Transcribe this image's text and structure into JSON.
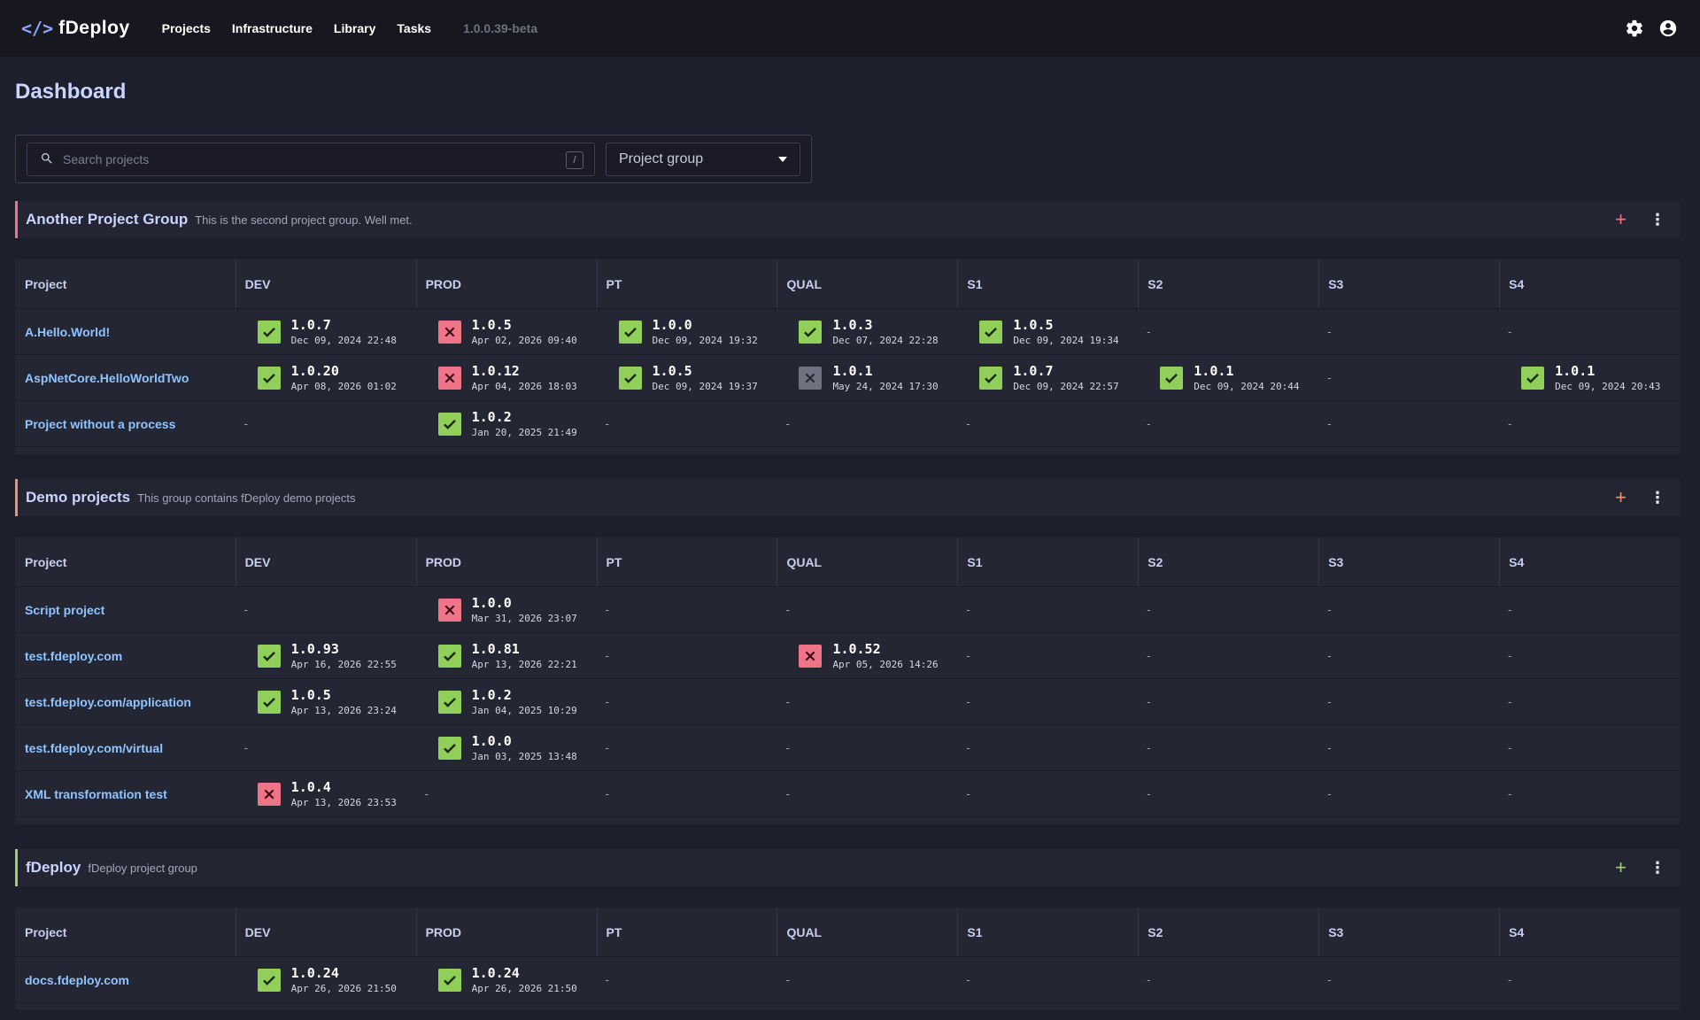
{
  "app": {
    "logo": "</>",
    "name": "fDeploy",
    "version": "1.0.0.39-beta"
  },
  "nav": [
    {
      "label": "Projects"
    },
    {
      "label": "Infrastructure"
    },
    {
      "label": "Library"
    },
    {
      "label": "Tasks"
    }
  ],
  "page_title": "Dashboard",
  "search": {
    "placeholder": "Search projects",
    "shortcut": "/"
  },
  "group_filter": {
    "label": "Project group"
  },
  "columns": [
    "Project",
    "DEV",
    "PROD",
    "PT",
    "QUAL",
    "S1",
    "S2",
    "S3",
    "S4"
  ],
  "empty_cell": "-",
  "colors": {
    "ok": "#8fcf5a",
    "fail": "#f07487",
    "cancel": "#707280",
    "group_accents": [
      "#f0748a",
      "#f0926c",
      "#9ed06a"
    ]
  },
  "groups": [
    {
      "name": "Another Project Group",
      "description": "This is the second project group. Well met.",
      "projects": [
        {
          "name": "A.Hello.World!",
          "envs": [
            {
              "status": "ok",
              "version": "1.0.7",
              "date": "Dec 09, 2024 22:48"
            },
            {
              "status": "fail",
              "version": "1.0.5",
              "date": "Apr 02, 2026 09:40"
            },
            {
              "status": "ok",
              "version": "1.0.0",
              "date": "Dec 09, 2024 19:32"
            },
            {
              "status": "ok",
              "version": "1.0.3",
              "date": "Dec 07, 2024 22:28"
            },
            {
              "status": "ok",
              "version": "1.0.5",
              "date": "Dec 09, 2024 19:34"
            },
            null,
            null,
            null
          ]
        },
        {
          "name": "AspNetCore.HelloWorldTwo",
          "envs": [
            {
              "status": "ok",
              "version": "1.0.20",
              "date": "Apr 08, 2026 01:02"
            },
            {
              "status": "fail",
              "version": "1.0.12",
              "date": "Apr 04, 2026 18:03"
            },
            {
              "status": "ok",
              "version": "1.0.5",
              "date": "Dec 09, 2024 19:37"
            },
            {
              "status": "cancel",
              "version": "1.0.1",
              "date": "May 24, 2024 17:30"
            },
            {
              "status": "ok",
              "version": "1.0.7",
              "date": "Dec 09, 2024 22:57"
            },
            {
              "status": "ok",
              "version": "1.0.1",
              "date": "Dec 09, 2024 20:44"
            },
            null,
            {
              "status": "ok",
              "version": "1.0.1",
              "date": "Dec 09, 2024 20:43"
            }
          ]
        },
        {
          "name": "Project without a process",
          "envs": [
            null,
            {
              "status": "ok",
              "version": "1.0.2",
              "date": "Jan 20, 2025 21:49"
            },
            null,
            null,
            null,
            null,
            null,
            null
          ]
        }
      ]
    },
    {
      "name": "Demo projects",
      "description": "This group contains fDeploy demo projects",
      "projects": [
        {
          "name": "Script project",
          "envs": [
            null,
            {
              "status": "fail",
              "version": "1.0.0",
              "date": "Mar 31, 2026 23:07"
            },
            null,
            null,
            null,
            null,
            null,
            null
          ]
        },
        {
          "name": "test.fdeploy.com",
          "envs": [
            {
              "status": "ok",
              "version": "1.0.93",
              "date": "Apr 16, 2026 22:55"
            },
            {
              "status": "ok",
              "version": "1.0.81",
              "date": "Apr 13, 2026 22:21"
            },
            null,
            {
              "status": "fail",
              "version": "1.0.52",
              "date": "Apr 05, 2026 14:26"
            },
            null,
            null,
            null,
            null
          ]
        },
        {
          "name": "test.fdeploy.com/application",
          "envs": [
            {
              "status": "ok",
              "version": "1.0.5",
              "date": "Apr 13, 2026 23:24"
            },
            {
              "status": "ok",
              "version": "1.0.2",
              "date": "Jan 04, 2025 10:29"
            },
            null,
            null,
            null,
            null,
            null,
            null
          ]
        },
        {
          "name": "test.fdeploy.com/virtual",
          "envs": [
            null,
            {
              "status": "ok",
              "version": "1.0.0",
              "date": "Jan 03, 2025 13:48"
            },
            null,
            null,
            null,
            null,
            null,
            null
          ]
        },
        {
          "name": "XML transformation test",
          "envs": [
            {
              "status": "fail",
              "version": "1.0.4",
              "date": "Apr 13, 2026 23:53"
            },
            null,
            null,
            null,
            null,
            null,
            null,
            null
          ]
        }
      ]
    },
    {
      "name": "fDeploy",
      "description": "fDeploy project group",
      "projects": [
        {
          "name": "docs.fdeploy.com",
          "envs": [
            {
              "status": "ok",
              "version": "1.0.24",
              "date": "Apr 26, 2026 21:50"
            },
            {
              "status": "ok",
              "version": "1.0.24",
              "date": "Apr 26, 2026 21:50"
            },
            null,
            null,
            null,
            null,
            null,
            null
          ]
        }
      ]
    }
  ]
}
